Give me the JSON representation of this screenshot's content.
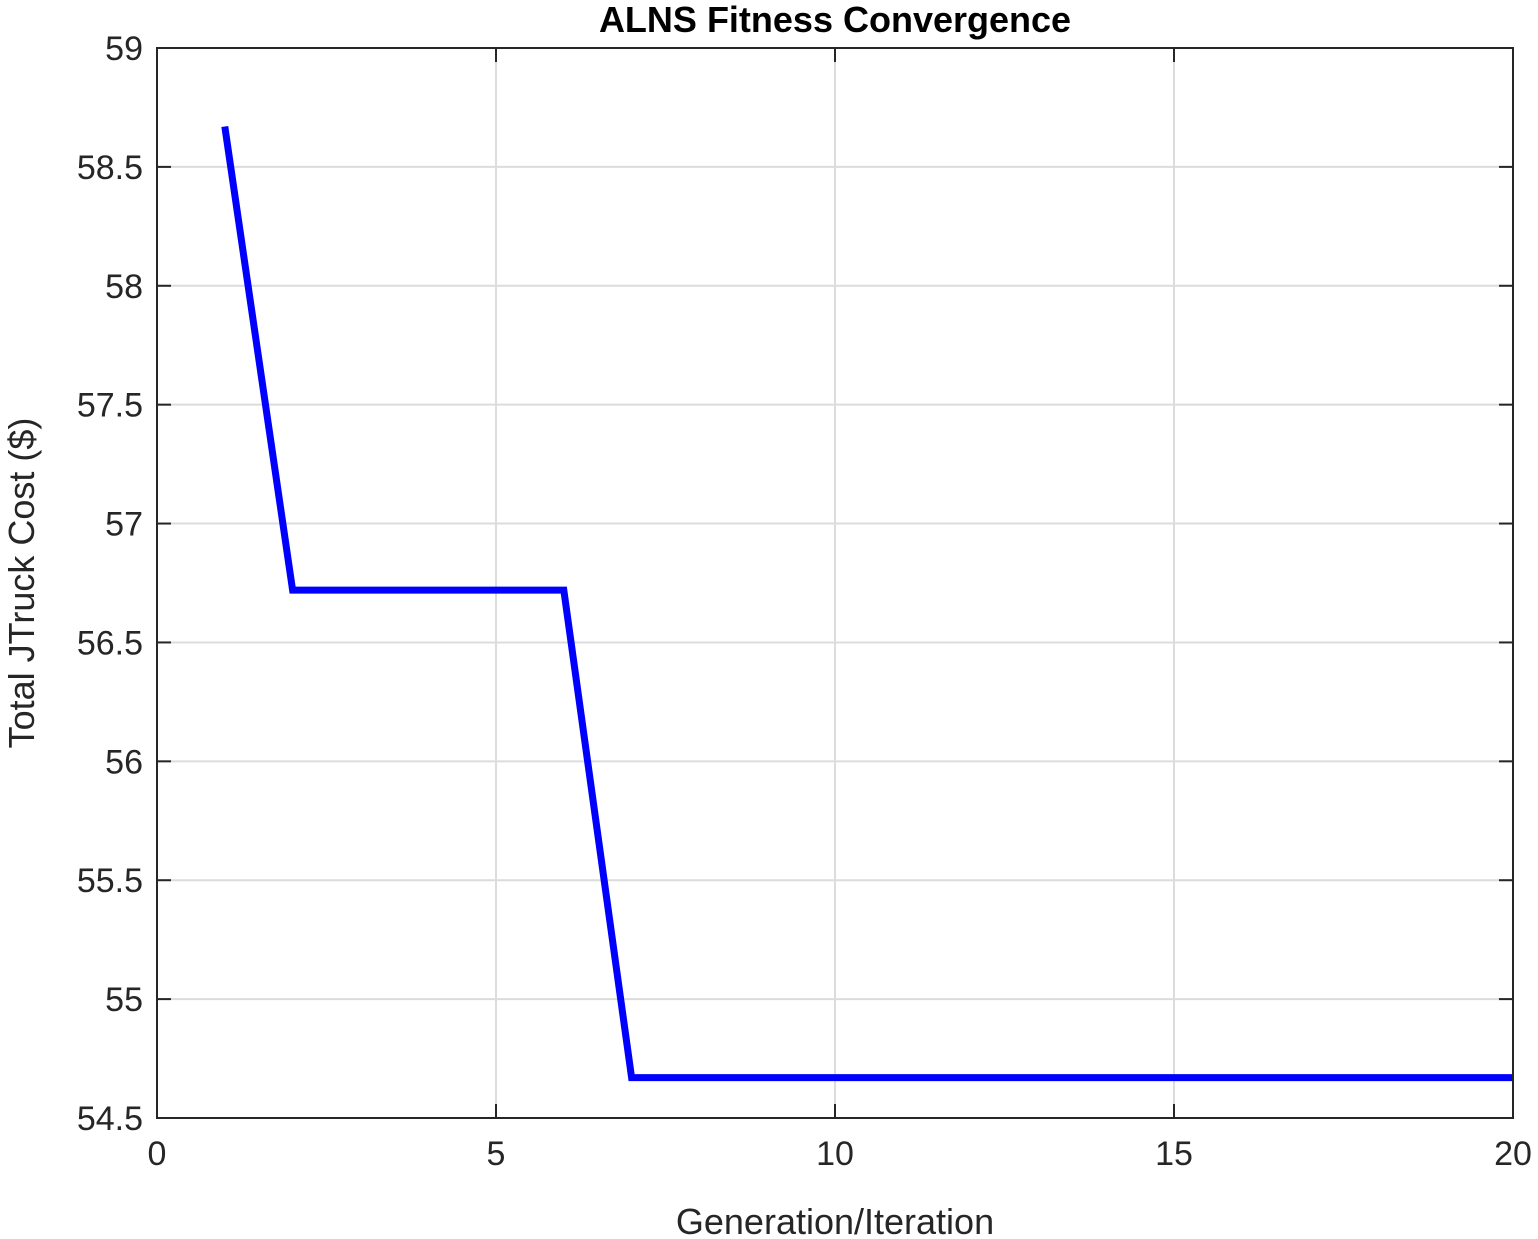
{
  "chart_data": {
    "type": "line",
    "title": "ALNS Fitness Convergence",
    "xlabel": "Generation/Iteration",
    "ylabel": "Total JTruck Cost ($)",
    "xlim": [
      0,
      20
    ],
    "ylim": [
      54.5,
      59
    ],
    "xticks": [
      0,
      5,
      10,
      15,
      20
    ],
    "yticks": [
      54.5,
      55,
      55.5,
      56,
      56.5,
      57,
      57.5,
      58,
      58.5,
      59
    ],
    "xtick_labels": [
      "0",
      "5",
      "10",
      "15",
      "20"
    ],
    "ytick_labels": [
      "54.5",
      "55",
      "55.5",
      "56",
      "56.5",
      "57",
      "57.5",
      "58",
      "58.5",
      "59"
    ],
    "grid": true,
    "series": [
      {
        "color": "#0000ff",
        "x": [
          1,
          2,
          3,
          4,
          5,
          6,
          7,
          8,
          9,
          10,
          11,
          12,
          13,
          14,
          15,
          16,
          17,
          18,
          19,
          20
        ],
        "y": [
          58.67,
          56.72,
          56.72,
          56.72,
          56.72,
          56.72,
          54.67,
          54.67,
          54.67,
          54.67,
          54.67,
          54.67,
          54.67,
          54.67,
          54.67,
          54.67,
          54.67,
          54.67,
          54.67,
          54.67
        ]
      }
    ]
  }
}
